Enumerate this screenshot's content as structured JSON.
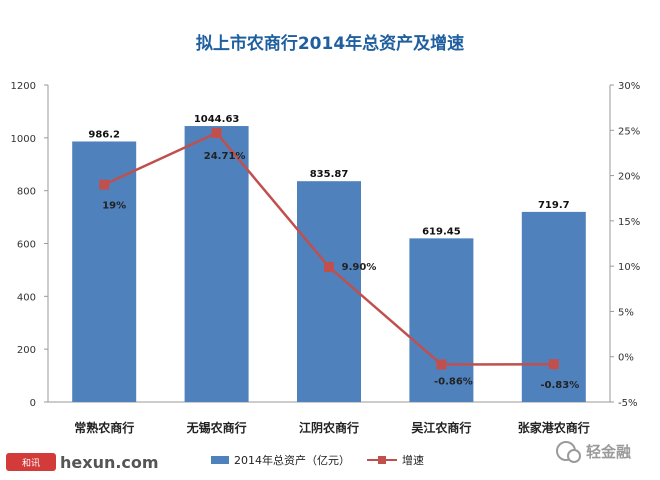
{
  "chart_data": {
    "type": "bar",
    "title": "拟上市农商行2014年总资产及增速",
    "categories": [
      "常熟农商行",
      "无锡农商行",
      "江阴农商行",
      "吴江农商行",
      "张家港农商行"
    ],
    "series": [
      {
        "name": "2014年总资产（亿元）",
        "type": "bar",
        "axis": "left",
        "values": [
          986.2,
          1044.63,
          835.87,
          619.45,
          719.7
        ],
        "labels": [
          "986.2",
          "1044.63",
          "835.87",
          "619.45",
          "719.7"
        ]
      },
      {
        "name": "增速",
        "type": "line",
        "axis": "right",
        "values": [
          19,
          24.71,
          9.9,
          -0.86,
          -0.83
        ],
        "labels": [
          "19%",
          "24.71%",
          "9.90%",
          "-0.86%",
          "-0.83%"
        ]
      }
    ],
    "ylim_left": [
      0,
      1200
    ],
    "yticks_left": [
      "0",
      "200",
      "400",
      "600",
      "800",
      "1000",
      "1200"
    ],
    "ylim_right": [
      -5,
      30
    ],
    "yticks_right": [
      "-5%",
      "0%",
      "5%",
      "10%",
      "15%",
      "20%",
      "25%",
      "30%"
    ],
    "grid": false,
    "legend_position": "bottom",
    "colors": {
      "bar": "#4f81bd",
      "line": "#c0504d",
      "title": "#1f5f9f"
    }
  },
  "watermarks": {
    "left_logo": "和讯",
    "left_site": "hexun.com",
    "right_brand": "轻金融"
  }
}
